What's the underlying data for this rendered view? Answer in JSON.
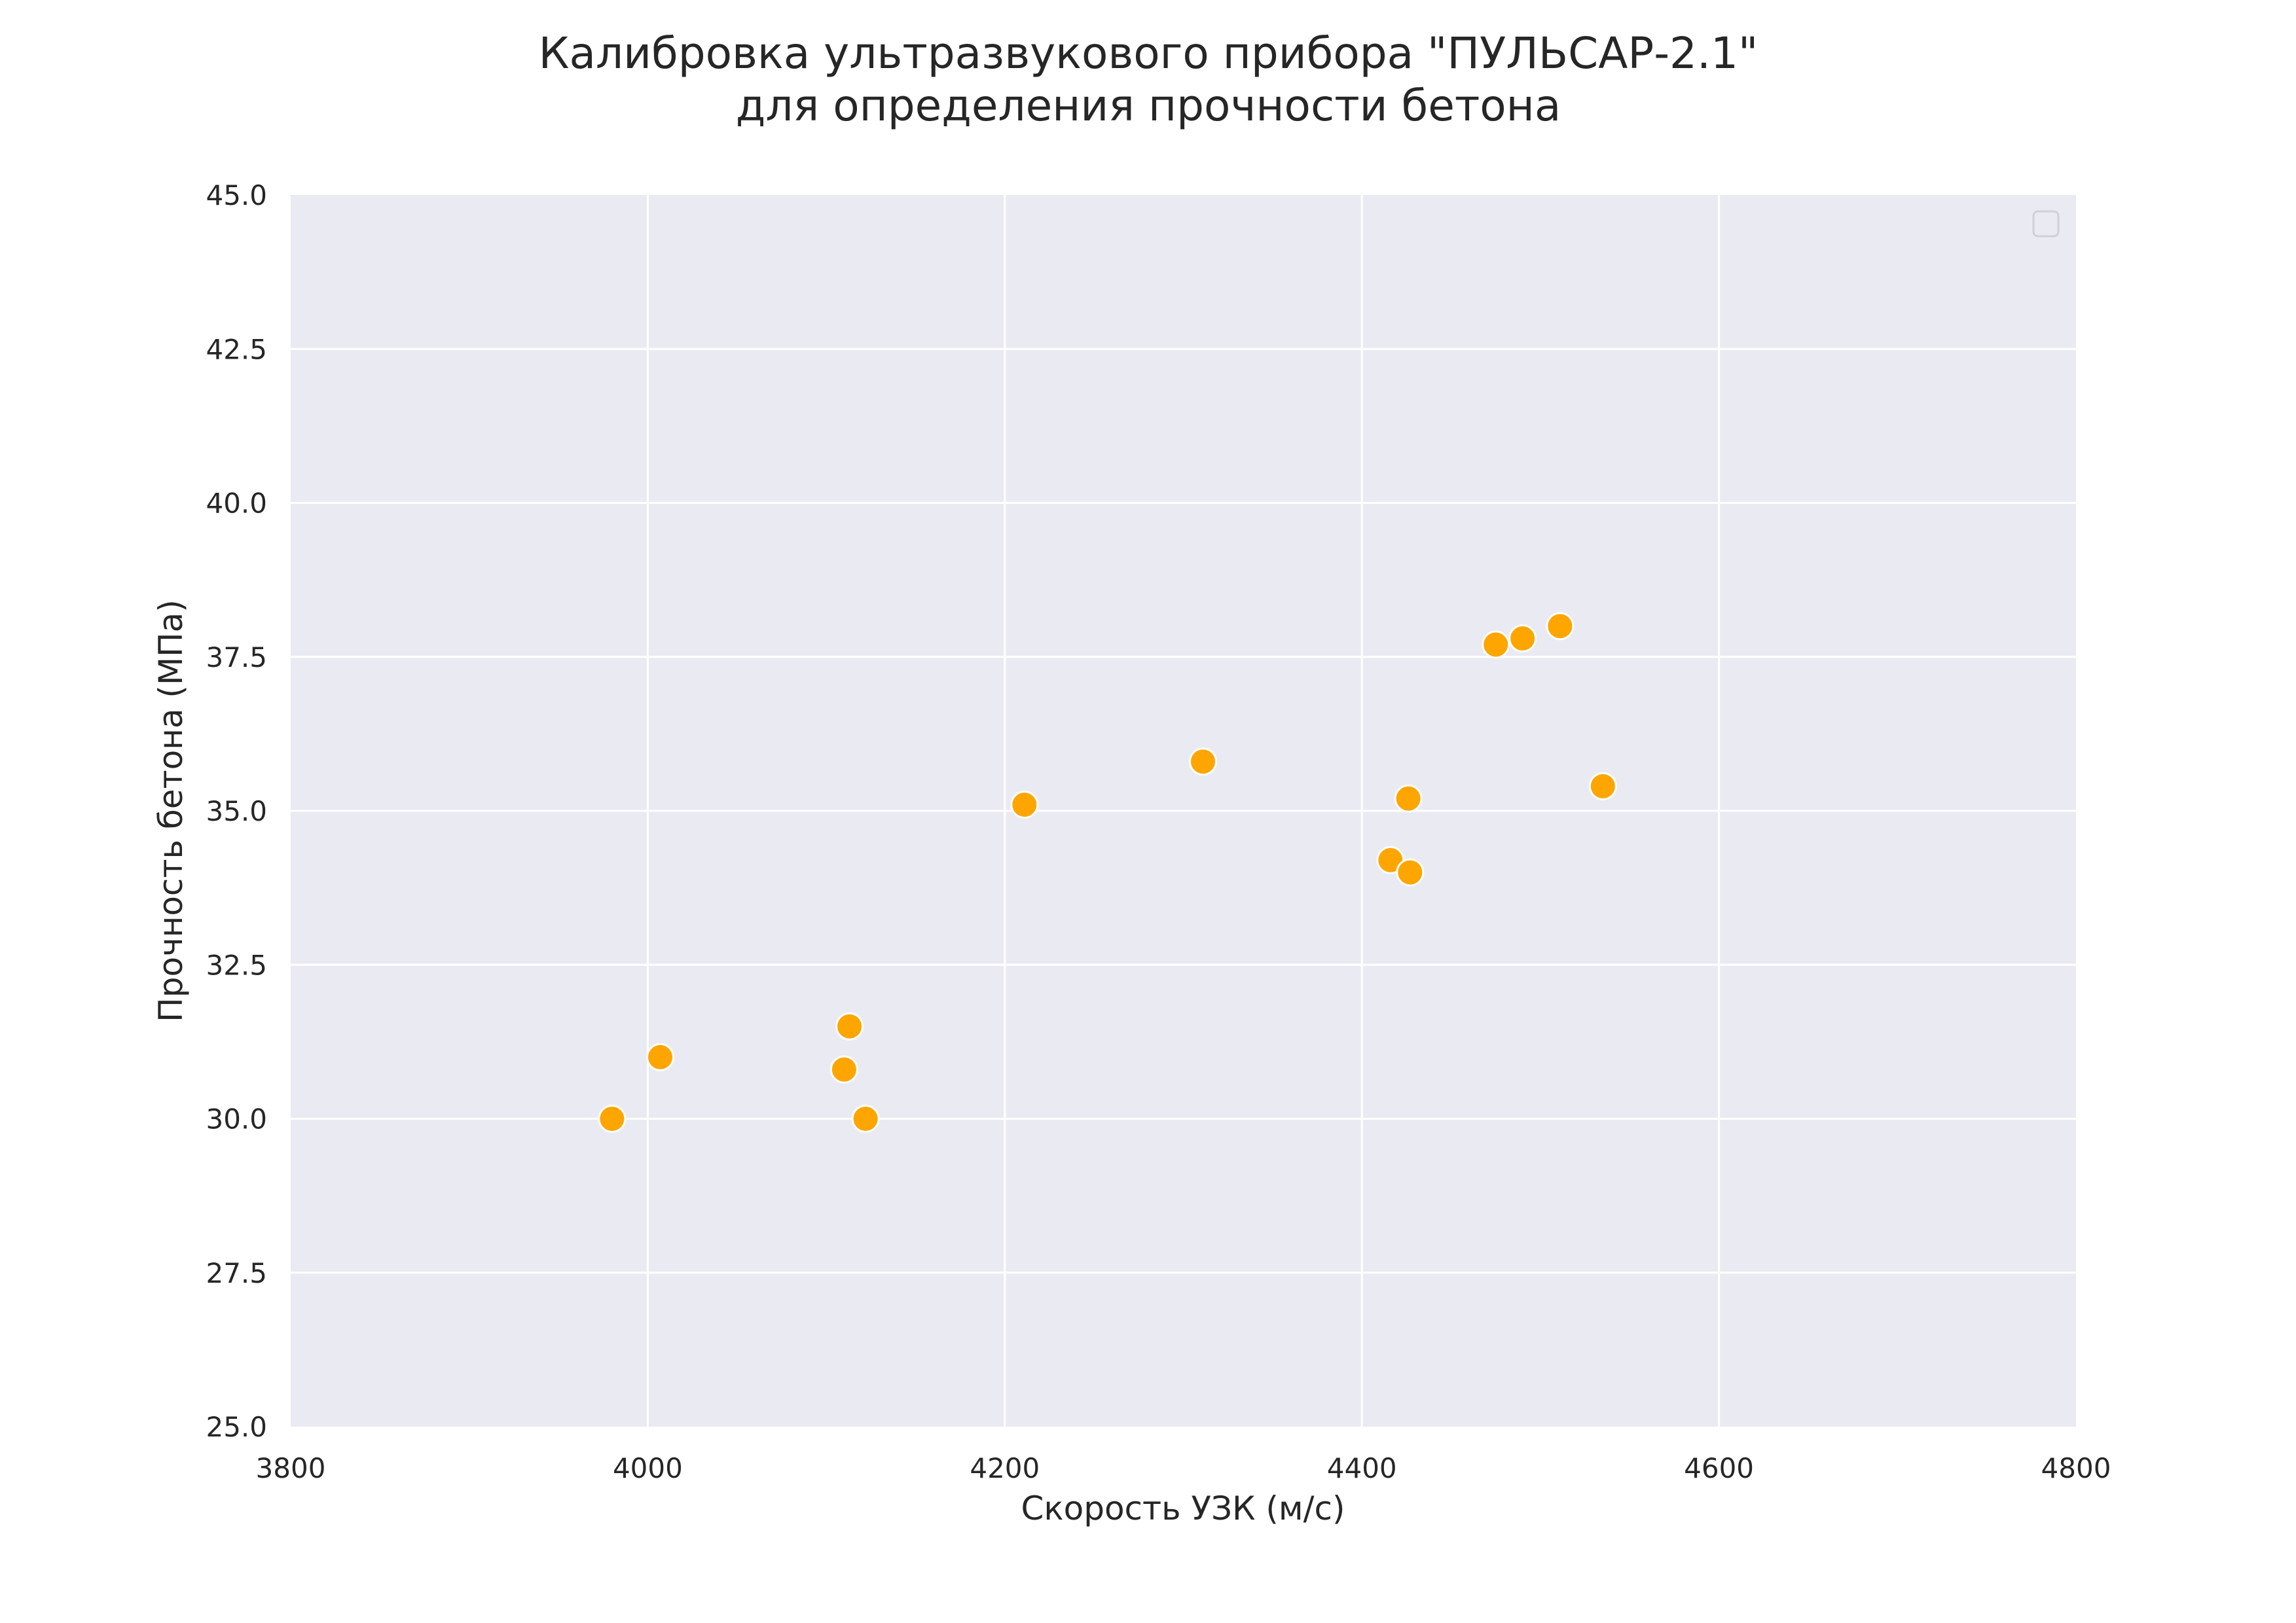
{
  "chart_data": {
    "type": "scatter",
    "title_lines": [
      "Калибровка ультразвукового прибора \"ПУЛЬСАР-2.1\"",
      "для определения прочности бетона"
    ],
    "xlabel": "Скорость УЗК (м/с)",
    "ylabel": "Прочность бетона (МПа)",
    "xlim": [
      3800,
      4800
    ],
    "ylim": [
      25.0,
      45.0
    ],
    "xticks": [
      3800,
      4000,
      4200,
      4400,
      4600,
      4800
    ],
    "yticks": [
      25.0,
      27.5,
      30.0,
      32.5,
      35.0,
      37.5,
      40.0,
      42.5,
      45.0
    ],
    "grid": true,
    "legend": "top-right (empty)",
    "colors": {
      "plot_background": "#eaeaf2",
      "grid": "#ffffff",
      "marker_fill": "#ffa500",
      "marker_edge": "#ffffff"
    },
    "points": [
      {
        "x": 3980,
        "y": 30.0
      },
      {
        "x": 4007,
        "y": 31.0
      },
      {
        "x": 4110,
        "y": 30.8
      },
      {
        "x": 4113,
        "y": 31.5
      },
      {
        "x": 4122,
        "y": 30.0
      },
      {
        "x": 4211,
        "y": 35.1
      },
      {
        "x": 4311,
        "y": 35.8
      },
      {
        "x": 4416,
        "y": 34.2
      },
      {
        "x": 4426,
        "y": 35.2
      },
      {
        "x": 4427,
        "y": 34.0
      },
      {
        "x": 4475,
        "y": 37.7
      },
      {
        "x": 4490,
        "y": 37.8
      },
      {
        "x": 4511,
        "y": 38.0
      },
      {
        "x": 4535,
        "y": 35.4
      }
    ]
  }
}
